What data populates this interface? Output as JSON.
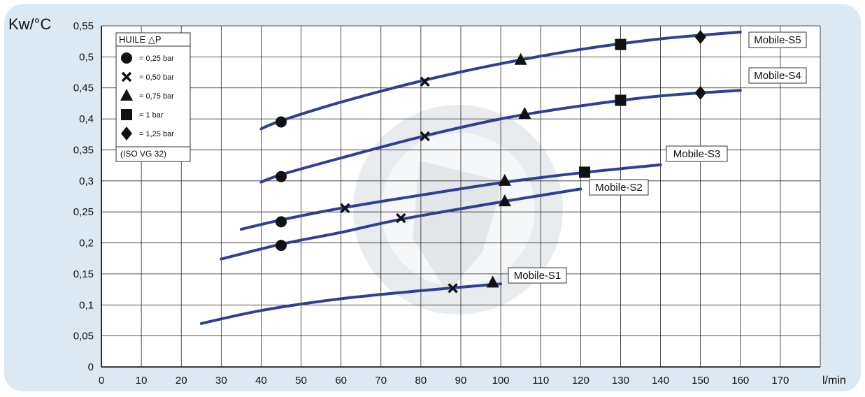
{
  "chart_data": {
    "type": "line",
    "ylabel": "Kw/°C",
    "xlabel": "l/min",
    "xlim": [
      0,
      180
    ],
    "ylim": [
      0,
      0.55
    ],
    "x_ticks": [
      0,
      10,
      20,
      30,
      40,
      50,
      60,
      70,
      80,
      90,
      100,
      110,
      120,
      130,
      140,
      150,
      160,
      170
    ],
    "x_tick_labels": [
      "0",
      "10",
      "20",
      "30",
      "40",
      "50",
      "60",
      "70",
      "80",
      "90",
      "100",
      "110",
      "120",
      "130",
      "140",
      "150",
      "160",
      "170"
    ],
    "y_ticks": [
      0,
      0.05,
      0.1,
      0.15,
      0.2,
      0.25,
      0.3,
      0.35,
      0.4,
      0.45,
      0.5,
      0.55
    ],
    "y_tick_labels": [
      "0",
      "0,05",
      "0,1",
      "0,15",
      "0,2",
      "0,25",
      "0,3",
      "0,35",
      "0,4",
      "0,45",
      "0,5",
      "0,55"
    ],
    "grid": true,
    "line_color": "#2e3f95",
    "background_color": "#dce9f3",
    "legend": {
      "title": "HUILE △P",
      "position": "top-left",
      "footer": "(ISO VG 32)",
      "entries": [
        {
          "marker": "circle",
          "label": "= 0,25 bar"
        },
        {
          "marker": "x",
          "label": "= 0,50 bar"
        },
        {
          "marker": "triangle",
          "label": "= 0,75 bar"
        },
        {
          "marker": "square",
          "label": "= 1 bar"
        },
        {
          "marker": "diamond",
          "label": "= 1,25 bar"
        }
      ]
    },
    "series": [
      {
        "name": "Mobile-S5",
        "curve": [
          [
            40,
            0.384
          ],
          [
            45,
            0.397
          ],
          [
            60,
            0.427
          ],
          [
            80,
            0.461
          ],
          [
            100,
            0.489
          ],
          [
            120,
            0.512
          ],
          [
            140,
            0.529
          ],
          [
            160,
            0.54
          ]
        ],
        "points": [
          {
            "x": 45,
            "y": 0.395,
            "marker": "circle"
          },
          {
            "x": 81,
            "y": 0.46,
            "marker": "x"
          },
          {
            "x": 105,
            "y": 0.495,
            "marker": "triangle"
          },
          {
            "x": 130,
            "y": 0.52,
            "marker": "square"
          },
          {
            "x": 150,
            "y": 0.532,
            "marker": "diamond"
          }
        ]
      },
      {
        "name": "Mobile-S4",
        "curve": [
          [
            40,
            0.298
          ],
          [
            45,
            0.31
          ],
          [
            60,
            0.337
          ],
          [
            80,
            0.371
          ],
          [
            100,
            0.4
          ],
          [
            120,
            0.421
          ],
          [
            140,
            0.437
          ],
          [
            160,
            0.446
          ]
        ],
        "points": [
          {
            "x": 45,
            "y": 0.307,
            "marker": "circle"
          },
          {
            "x": 81,
            "y": 0.372,
            "marker": "x"
          },
          {
            "x": 106,
            "y": 0.408,
            "marker": "triangle"
          },
          {
            "x": 130,
            "y": 0.43,
            "marker": "square"
          },
          {
            "x": 150,
            "y": 0.442,
            "marker": "diamond"
          }
        ]
      },
      {
        "name": "Mobile-S3",
        "curve": [
          [
            35,
            0.222
          ],
          [
            45,
            0.237
          ],
          [
            60,
            0.256
          ],
          [
            80,
            0.277
          ],
          [
            100,
            0.297
          ],
          [
            120,
            0.313
          ],
          [
            140,
            0.326
          ]
        ],
        "points": [
          {
            "x": 45,
            "y": 0.234,
            "marker": "circle"
          },
          {
            "x": 61,
            "y": 0.256,
            "marker": "x"
          },
          {
            "x": 101,
            "y": 0.3,
            "marker": "triangle"
          },
          {
            "x": 121,
            "y": 0.314,
            "marker": "square"
          }
        ]
      },
      {
        "name": "Mobile-S2",
        "curve": [
          [
            30,
            0.174
          ],
          [
            45,
            0.198
          ],
          [
            60,
            0.217
          ],
          [
            75,
            0.238
          ],
          [
            100,
            0.266
          ],
          [
            120,
            0.287
          ]
        ],
        "points": [
          {
            "x": 45,
            "y": 0.196,
            "marker": "circle"
          },
          {
            "x": 75,
            "y": 0.24,
            "marker": "x"
          },
          {
            "x": 101,
            "y": 0.267,
            "marker": "triangle"
          }
        ]
      },
      {
        "name": "Mobile-S1",
        "curve": [
          [
            25,
            0.07
          ],
          [
            40,
            0.091
          ],
          [
            60,
            0.11
          ],
          [
            80,
            0.123
          ],
          [
            100,
            0.134
          ]
        ],
        "points": [
          {
            "x": 88,
            "y": 0.127,
            "marker": "x"
          },
          {
            "x": 98,
            "y": 0.136,
            "marker": "triangle"
          }
        ]
      }
    ]
  }
}
